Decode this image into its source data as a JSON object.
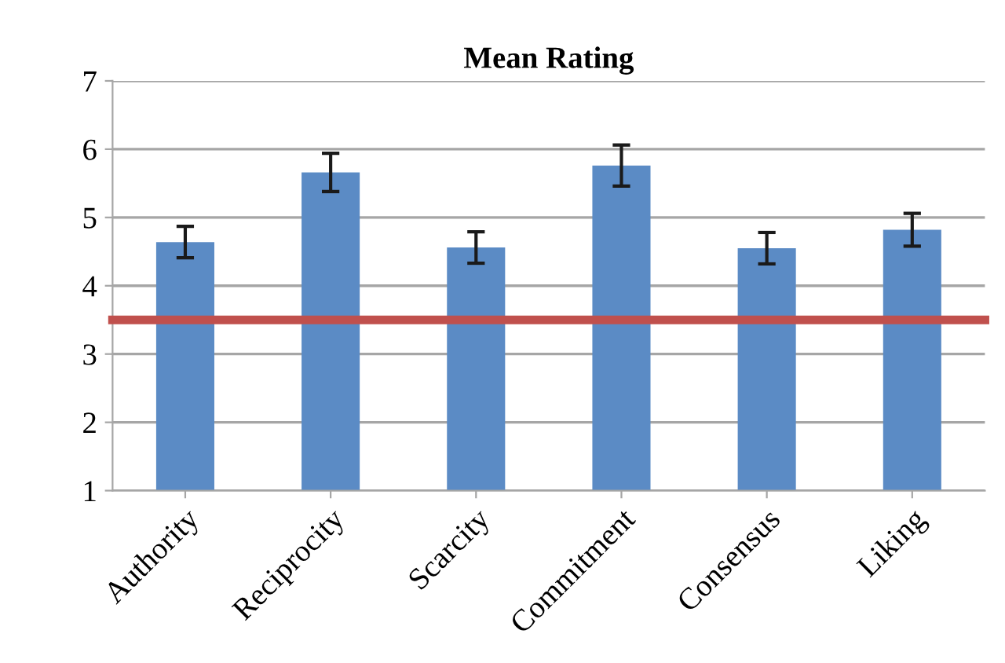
{
  "chart_data": {
    "type": "bar",
    "title": "Mean Rating",
    "categories": [
      "Authority",
      "Reciprocity",
      "Scarcity",
      "Commitment",
      "Consensus",
      "Liking"
    ],
    "values": [
      4.64,
      5.66,
      4.56,
      5.76,
      4.55,
      4.82
    ],
    "errors": [
      0.23,
      0.28,
      0.23,
      0.3,
      0.23,
      0.24
    ],
    "color": "#5b8bc5",
    "ylim": [
      1,
      7
    ],
    "yticks": [
      1,
      2,
      3,
      4,
      5,
      6,
      7
    ],
    "grid": "y",
    "ref_lines": [
      {
        "axis": "y",
        "value": 3.5,
        "color": "#c0504d"
      }
    ]
  }
}
